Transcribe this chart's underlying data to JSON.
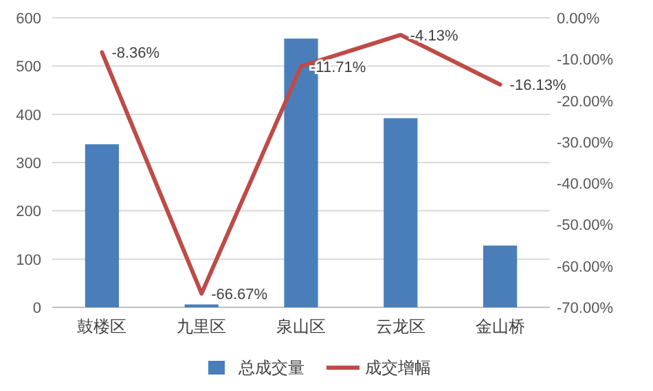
{
  "chart_data": {
    "type": "bar",
    "categories": [
      "鼓楼区",
      "九里区",
      "泉山区",
      "云龙区",
      "金山桥"
    ],
    "series": [
      {
        "name": "总成交量",
        "color": "#4a7ebb",
        "values": [
          338,
          6,
          557,
          392,
          128
        ]
      },
      {
        "name": "成交增幅",
        "type": "line",
        "axis": "y2",
        "color": "#be4b48",
        "values": [
          -8.36,
          -66.67,
          -11.71,
          -4.13,
          -16.13
        ],
        "value_labels": [
          "-8.36%",
          "-66.67%",
          "-11.71%",
          "-4.13%",
          "-16.13%"
        ]
      }
    ],
    "ylim": [
      0,
      600
    ],
    "yticks": [
      0,
      100,
      200,
      300,
      400,
      500,
      600
    ],
    "y2lim": [
      -70,
      0
    ],
    "y2ticks": [
      {
        "value": 0,
        "label": "0.00%"
      },
      {
        "value": -10,
        "label": "-10.00%"
      },
      {
        "value": -20,
        "label": "-20.00%"
      },
      {
        "value": -30,
        "label": "-30.00%"
      },
      {
        "value": -40,
        "label": "-40.00%"
      },
      {
        "value": -50,
        "label": "-50.00%"
      },
      {
        "value": -60,
        "label": "-60.00%"
      },
      {
        "value": -70,
        "label": "-70.00%"
      }
    ],
    "grid": "y",
    "legend": "bottom"
  }
}
